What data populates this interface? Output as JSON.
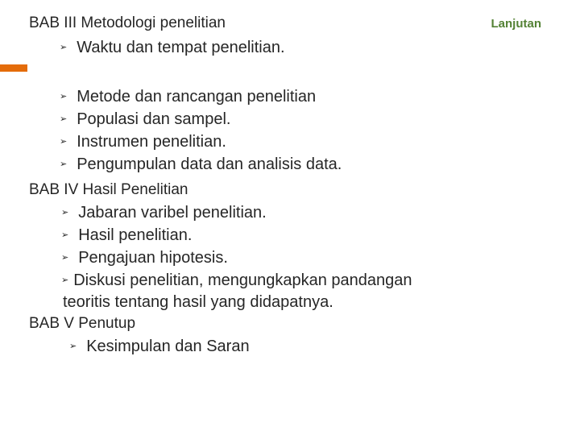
{
  "header": {
    "title": "BAB III Metodologi penelitian",
    "continuation": "Lanjutan"
  },
  "accent_color": "#e46c0a",
  "bab3_items_a": [
    "Waktu dan tempat penelitian."
  ],
  "bab3_items_b": [
    "Metode dan rancangan penelitian",
    "Populasi dan sampel.",
    "Instrumen penelitian.",
    "Pengumpulan data dan analisis data."
  ],
  "bab4_title": "BAB IV Hasil Penelitian",
  "bab4_items": [
    "Jabaran varibel penelitian.",
    "Hasil penelitian.",
    "Pengajuan hipotesis."
  ],
  "bab4_last_line1": "Diskusi penelitian, mengungkapkan pandangan",
  "bab4_last_line2": "teoritis tentang hasil yang didapatnya.",
  "bab5_title": "BAB V Penutup",
  "bab5_items": [
    "Kesimpulan dan Saran"
  ]
}
